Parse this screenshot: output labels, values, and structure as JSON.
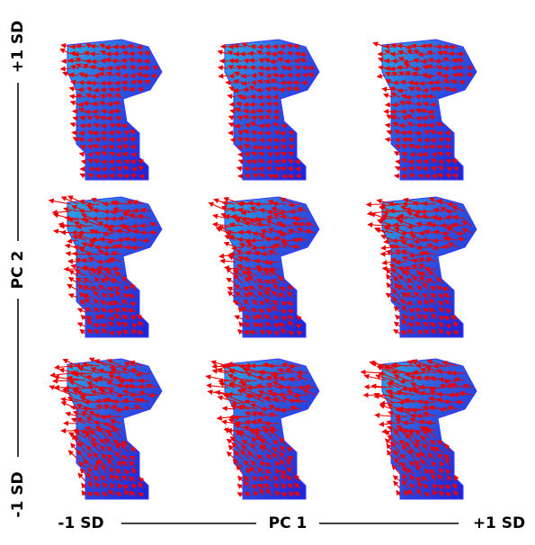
{
  "y_axis": {
    "top": "+1 SD",
    "label": "PC 2",
    "bottom": "-1 SD"
  },
  "x_axis": {
    "left": "-1 SD",
    "label": "PC 1",
    "right": "+1 SD"
  }
}
